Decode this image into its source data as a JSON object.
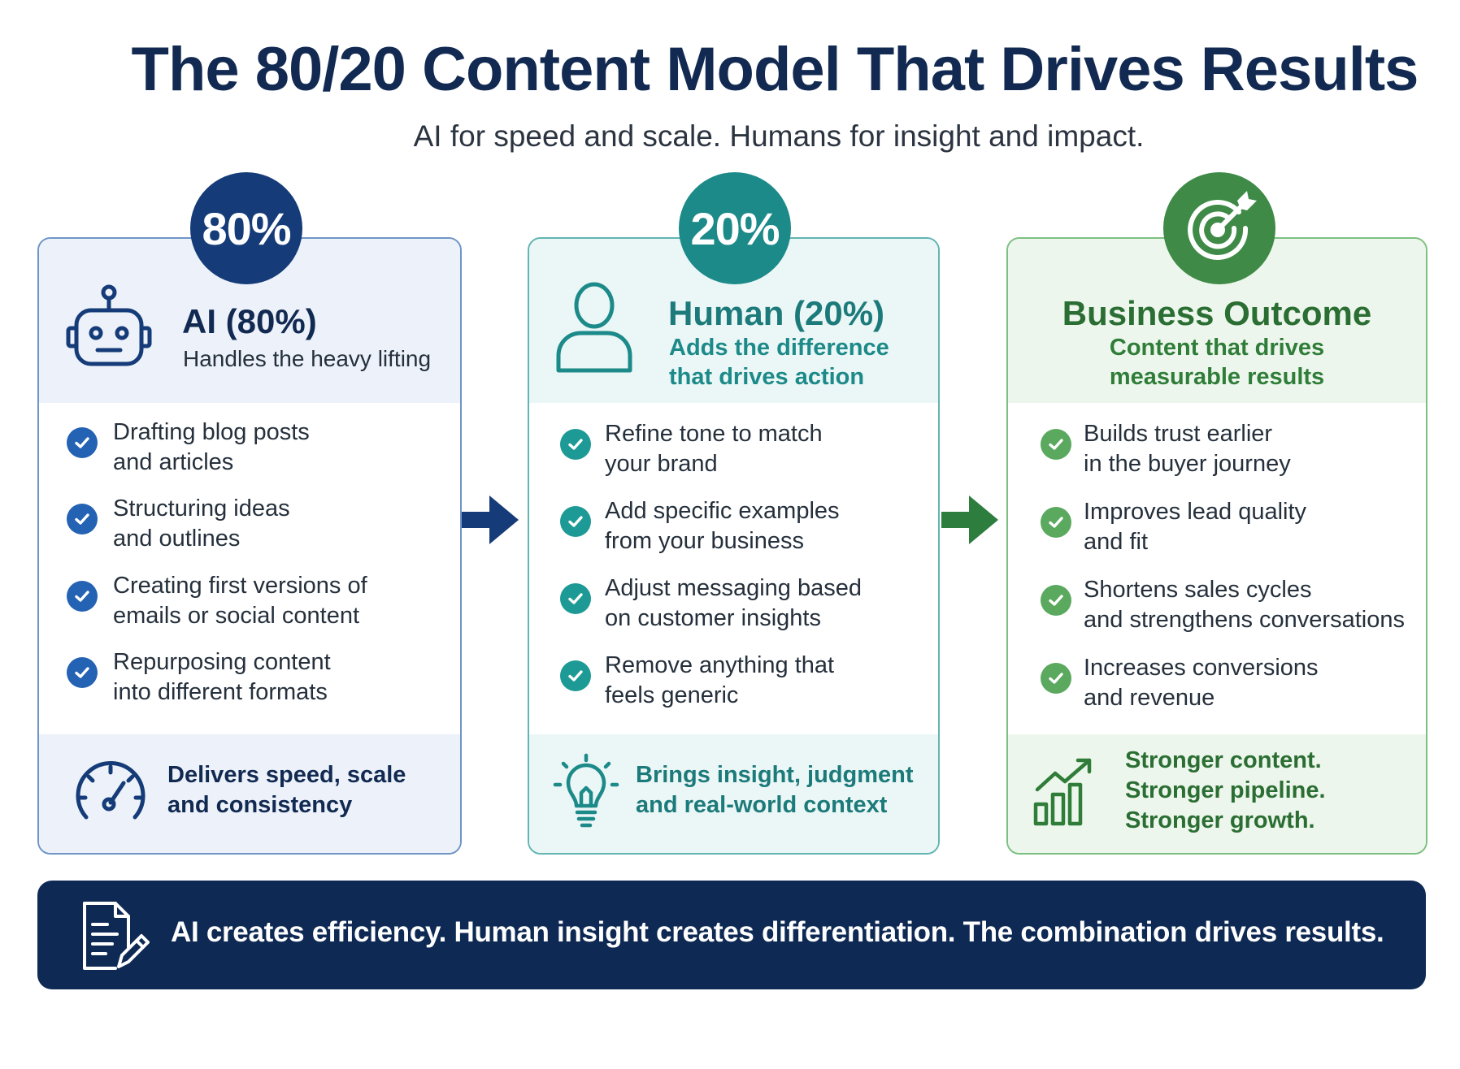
{
  "title": "The 80/20 Content Model That Drives Results",
  "subtitle": "AI for speed and scale. Humans for insight and impact.",
  "colors": {
    "navy": "#153c78",
    "teal": "#1c8a89",
    "green": "#3f8a47",
    "banner": "#0e2a54"
  },
  "cards": {
    "ai": {
      "badge": "80%",
      "icon": "robot-icon",
      "title": "AI (80%)",
      "subtitle": "Handles the heavy lifting",
      "items": [
        [
          "Drafting blog posts",
          "and articles"
        ],
        [
          "Structuring ideas",
          "and outlines"
        ],
        [
          "Creating first versions of",
          "emails or social content"
        ],
        [
          "Repurposing content",
          "into different formats"
        ]
      ],
      "footer_icon": "speedometer-icon",
      "footer": [
        "Delivers speed, scale",
        "and consistency"
      ]
    },
    "human": {
      "badge": "20%",
      "icon": "person-icon",
      "title": "Human (20%)",
      "subtitle": [
        "Adds the difference",
        "that drives action"
      ],
      "items": [
        [
          "Refine tone to match",
          "your brand"
        ],
        [
          "Add specific examples",
          "from your business"
        ],
        [
          "Adjust messaging based",
          "on customer insights"
        ],
        [
          "Remove anything that",
          "feels generic"
        ]
      ],
      "footer_icon": "lightbulb-icon",
      "footer": [
        "Brings insight, judgment",
        "and real-world context"
      ]
    },
    "outcome": {
      "badge_icon": "target-icon",
      "title": "Business Outcome",
      "subtitle": [
        "Content that drives",
        "measurable results"
      ],
      "items": [
        [
          "Builds trust earlier",
          "in the buyer journey"
        ],
        [
          "Improves lead quality",
          "and fit"
        ],
        [
          "Shortens sales cycles",
          "and strengthens conversations"
        ],
        [
          "Increases conversions",
          "and revenue"
        ]
      ],
      "footer_icon": "growth-chart-icon",
      "footer": [
        "Stronger content.",
        "Stronger pipeline.",
        "Stronger growth."
      ]
    }
  },
  "banner": {
    "icon": "document-edit-icon",
    "text": "AI creates efficiency. Human insight creates differentiation. The combination drives results."
  }
}
